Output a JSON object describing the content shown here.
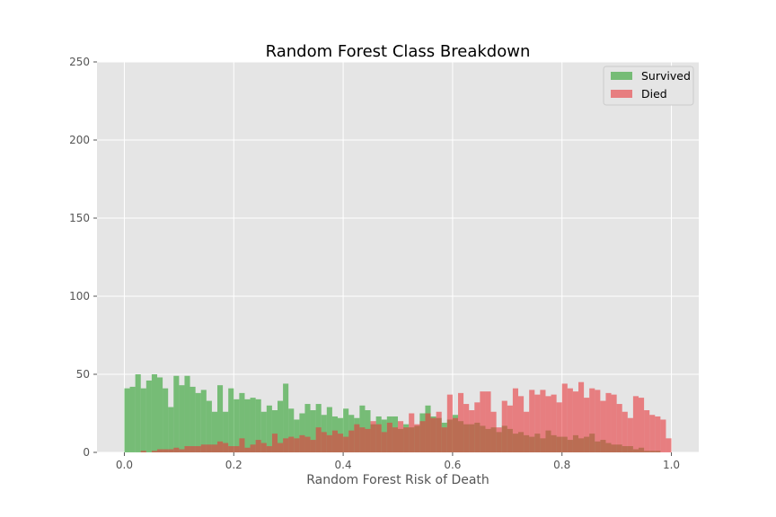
{
  "chart_data": {
    "type": "histogram",
    "title": "Random Forest Class Breakdown",
    "xlabel": "Random Forest Risk of Death",
    "ylabel": "",
    "xlim": [
      -0.05,
      1.05
    ],
    "ylim": [
      0,
      250
    ],
    "xticks": [
      "0.0",
      "0.2",
      "0.4",
      "0.6",
      "0.8",
      "1.0"
    ],
    "yticks": [
      "0",
      "50",
      "100",
      "150",
      "200",
      "250"
    ],
    "grid": true,
    "legend_position": "top-right",
    "bin_start": 0.0,
    "bin_width": 0.01,
    "series": [
      {
        "name": "Survived",
        "color": "#2ca02c",
        "values": [
          41,
          42,
          50,
          41,
          46,
          50,
          48,
          41,
          29,
          49,
          43,
          49,
          42,
          38,
          40,
          33,
          26,
          43,
          26,
          41,
          34,
          38,
          34,
          35,
          34,
          26,
          30,
          27,
          33,
          44,
          28,
          21,
          25,
          31,
          27,
          31,
          24,
          29,
          23,
          22,
          28,
          24,
          22,
          30,
          27,
          18,
          23,
          21,
          23,
          23,
          15,
          18,
          16,
          17,
          25,
          30,
          23,
          22,
          19,
          21,
          24,
          20,
          18,
          18,
          19,
          17,
          15,
          16,
          13,
          17,
          15,
          12,
          13,
          11,
          10,
          12,
          9,
          14,
          11,
          10,
          10,
          8,
          11,
          9,
          10,
          12,
          7,
          8,
          6,
          5,
          5,
          4,
          4,
          2,
          3,
          1,
          1,
          1,
          0,
          0
        ]
      },
      {
        "name": "Died",
        "color": "#e8393c",
        "values": [
          0,
          0,
          0,
          1,
          0,
          1,
          2,
          2,
          2,
          3,
          2,
          4,
          4,
          4,
          5,
          5,
          5,
          7,
          6,
          4,
          4,
          9,
          3,
          5,
          8,
          6,
          4,
          12,
          6,
          9,
          10,
          9,
          11,
          10,
          8,
          16,
          13,
          11,
          14,
          12,
          10,
          14,
          18,
          16,
          15,
          20,
          18,
          13,
          19,
          16,
          20,
          16,
          25,
          18,
          20,
          25,
          22,
          26,
          16,
          37,
          22,
          38,
          31,
          27,
          32,
          39,
          39,
          26,
          16,
          33,
          30,
          41,
          36,
          26,
          40,
          37,
          40,
          36,
          37,
          32,
          44,
          41,
          39,
          45,
          35,
          41,
          40,
          33,
          38,
          37,
          31,
          26,
          22,
          36,
          35,
          27,
          24,
          23,
          21,
          9
        ]
      }
    ]
  }
}
